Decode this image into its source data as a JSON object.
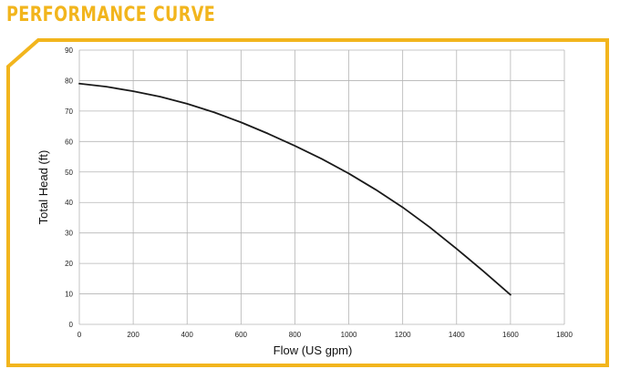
{
  "header": {
    "title": "PERFORMANCE CURVE"
  },
  "colors": {
    "accent": "#f2b51d",
    "grid": "#b5b5b5",
    "curve": "#1a1a1a"
  },
  "chart_data": {
    "type": "line",
    "title": "",
    "xlabel": "Flow (US gpm)",
    "ylabel": "Total Head (ft)",
    "xlim": [
      0,
      1800
    ],
    "ylim": [
      0,
      90
    ],
    "xticks": [
      0,
      200,
      400,
      600,
      800,
      1000,
      1200,
      1400,
      1600,
      1800
    ],
    "yticks": [
      0,
      10,
      20,
      30,
      40,
      50,
      60,
      70,
      80,
      90
    ],
    "grid": true,
    "series": [
      {
        "x": [
          0,
          100,
          200,
          300,
          400,
          500,
          600,
          700,
          800,
          900,
          1000,
          1100,
          1200,
          1300,
          1400,
          1500,
          1600
        ],
        "y": [
          79,
          78,
          76.5,
          74.7,
          72.4,
          69.6,
          66.3,
          62.6,
          58.6,
          54.3,
          49.5,
          44.2,
          38.4,
          31.9,
          24.8,
          17.4,
          9.7
        ]
      }
    ]
  }
}
